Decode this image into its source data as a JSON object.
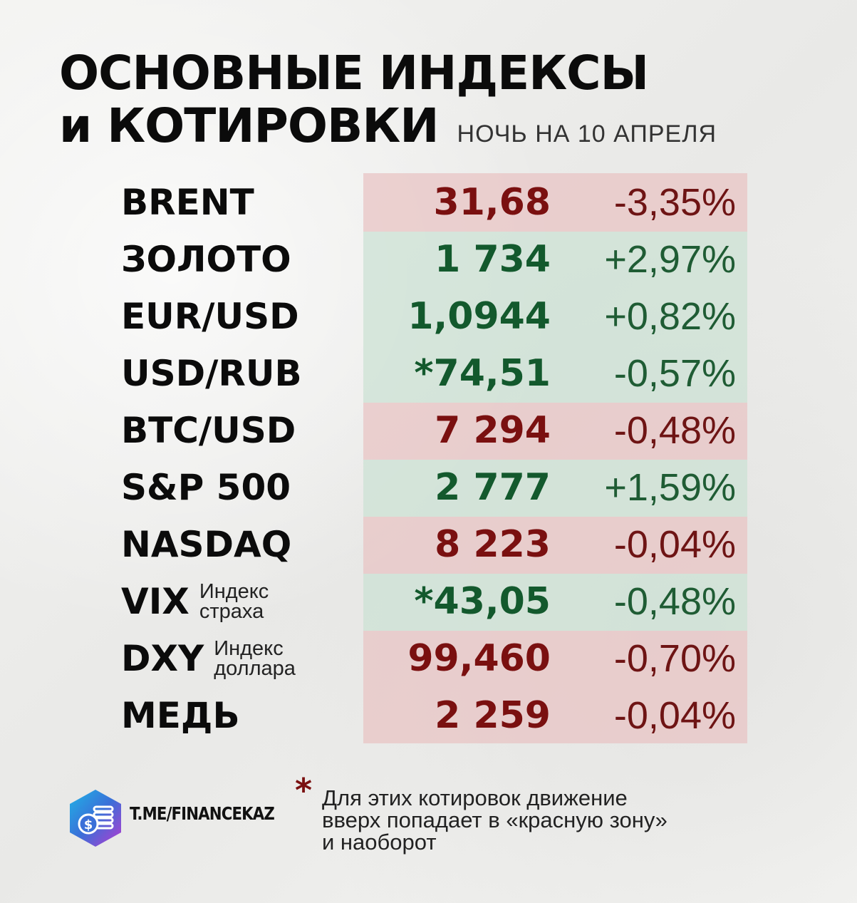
{
  "title": {
    "line1": "ОСНОВНЫЕ ИНДЕКСЫ",
    "line2": "и КОТИРОВКИ",
    "subtitle": "НОЧЬ НА 10 АПРЕЛЯ"
  },
  "rows": [
    {
      "name": "BRENT",
      "note1": "",
      "note2": "",
      "value": "31,68",
      "change": "-3,35%",
      "color": "red"
    },
    {
      "name": "ЗОЛОТО",
      "note1": "",
      "note2": "",
      "value": "1 734",
      "change": "+2,97%",
      "color": "green"
    },
    {
      "name": "EUR/USD",
      "note1": "",
      "note2": "",
      "value": "1,0944",
      "change": "+0,82%",
      "color": "green"
    },
    {
      "name": "USD/RUB",
      "note1": "",
      "note2": "",
      "value": "*74,51",
      "change": "-0,57%",
      "color": "green"
    },
    {
      "name": "BTC/USD",
      "note1": "",
      "note2": "",
      "value": "7 294",
      "change": "-0,48%",
      "color": "red"
    },
    {
      "name": "S&P 500",
      "note1": "",
      "note2": "",
      "value": "2 777",
      "change": "+1,59%",
      "color": "green"
    },
    {
      "name": "NASDAQ",
      "note1": "",
      "note2": "",
      "value": "8 223",
      "change": "-0,04%",
      "color": "red"
    },
    {
      "name": "VIX",
      "note1": "Индекс",
      "note2": "страха",
      "value": "*43,05",
      "change": "-0,48%",
      "color": "green"
    },
    {
      "name": "DXY",
      "note1": "Индекс",
      "note2": "доллара",
      "value": "99,460",
      "change": "-0,70%",
      "color": "red"
    },
    {
      "name": "МЕДЬ",
      "note1": "",
      "note2": "",
      "value": "2 259",
      "change": "-0,04%",
      "color": "red"
    }
  ],
  "colors": {
    "red_text": "#7a1010",
    "green_text": "#13592d",
    "red_band": "#e8c4c4",
    "green_band": "#cce2d4"
  },
  "footer": {
    "channel": "T.ME/FINANCEKAZ",
    "logo_icon": "coins-dollar-icon",
    "star": "*",
    "note_line1": "Для этих котировок движение",
    "note_line2": "вверх попадает в «красную зону»",
    "note_line3": "и наоборот"
  }
}
